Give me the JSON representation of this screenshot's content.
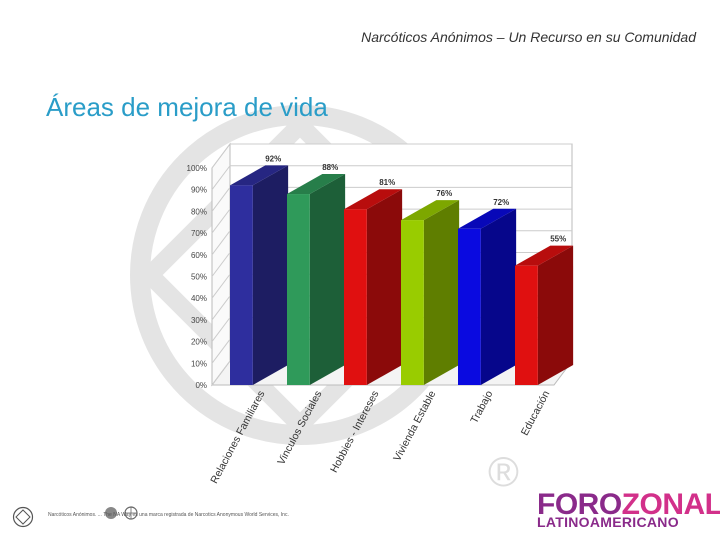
{
  "header": {
    "subtitle": "Narcóticos Anónimos – Un Recurso en su Comunidad"
  },
  "slide": {
    "title": "Áreas de mejora de vida"
  },
  "chart_data": {
    "type": "bar",
    "style": "3d",
    "categories": [
      "Relaciones Familiares",
      "Vinculos Sociales",
      "Hobbies - Intereses",
      "Vivienda Estable",
      "Trabajo",
      "Educación"
    ],
    "values": [
      92,
      88,
      81,
      76,
      72,
      55
    ],
    "data_labels": [
      "92%",
      "88%",
      "81%",
      "76%",
      "72%",
      "55%"
    ],
    "colors": [
      "#2e2e9e",
      "#2f9a5a",
      "#e01010",
      "#99cc00",
      "#0a0ae0",
      "#e01010"
    ],
    "yticks": [
      "0%",
      "10%",
      "20%",
      "30%",
      "40%",
      "50%",
      "60%",
      "70%",
      "80%",
      "90%",
      "100%"
    ],
    "ylim": [
      0,
      100
    ],
    "grid": true,
    "title": "",
    "xlabel": "",
    "ylabel": ""
  },
  "footer": {
    "text": "Narcóticos Anónimos. ... The NA Way es una marca registrada de Narcotics Anonymous World Services, Inc."
  },
  "logo": {
    "line1_a": "FORO",
    "line1_b": "ZONAL",
    "line2": "LATINOAMERICANO",
    "reg": "®"
  }
}
